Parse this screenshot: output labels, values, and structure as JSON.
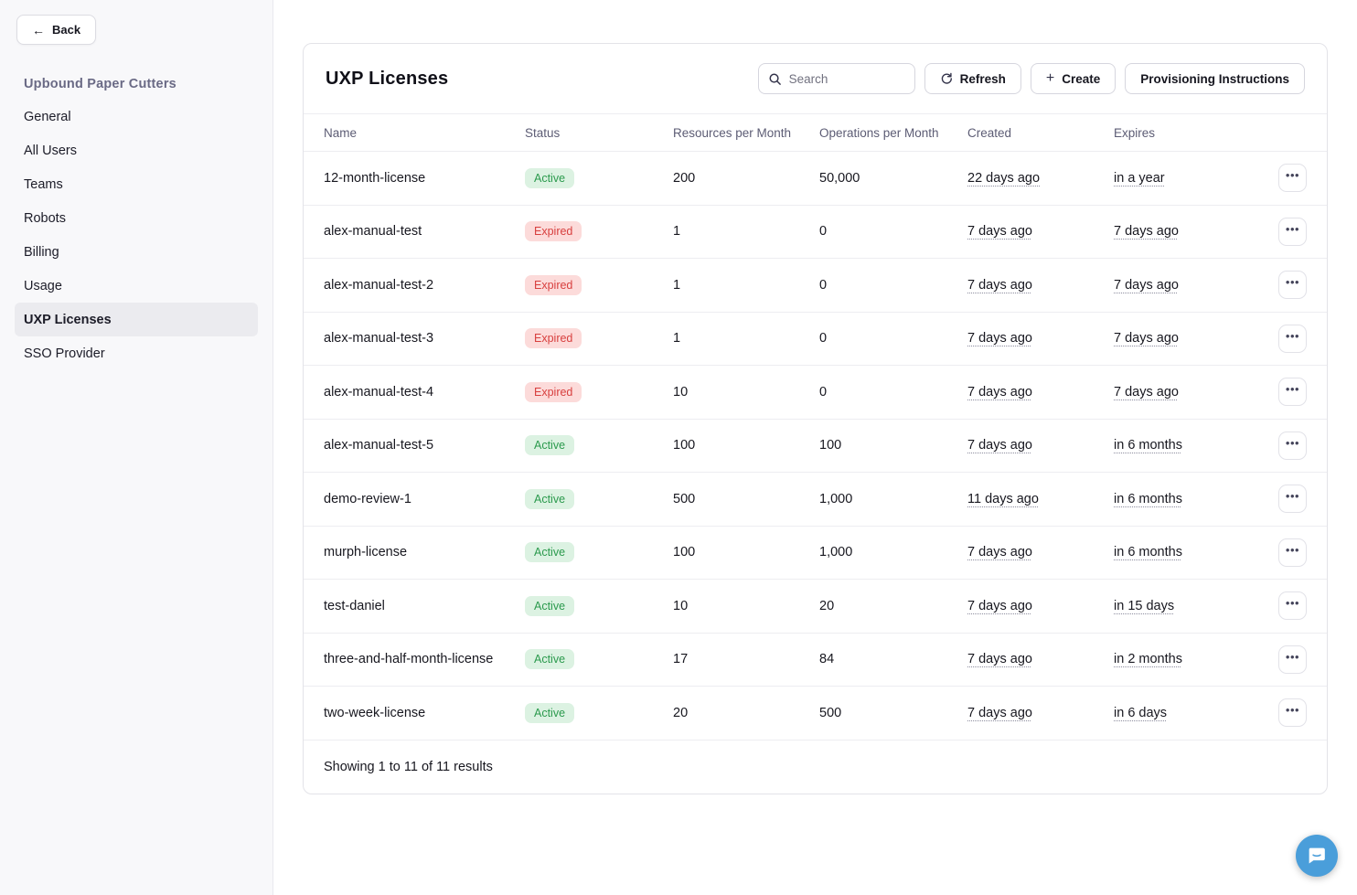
{
  "sidebar": {
    "back_label": "Back",
    "back_icon": "←",
    "org_title": "Upbound Paper Cutters",
    "items": [
      {
        "label": "General",
        "active": false
      },
      {
        "label": "All Users",
        "active": false
      },
      {
        "label": "Teams",
        "active": false
      },
      {
        "label": "Robots",
        "active": false
      },
      {
        "label": "Billing",
        "active": false
      },
      {
        "label": "Usage",
        "active": false
      },
      {
        "label": "UXP Licenses",
        "active": true
      },
      {
        "label": "SSO Provider",
        "active": false
      }
    ]
  },
  "header": {
    "title": "UXP Licenses",
    "search_placeholder": "Search",
    "refresh_label": "Refresh",
    "create_label": "Create",
    "create_icon": "+",
    "provisioning_label": "Provisioning Instructions"
  },
  "table": {
    "columns": [
      "Name",
      "Status",
      "Resources per Month",
      "Operations per Month",
      "Created",
      "Expires"
    ],
    "rows": [
      {
        "name": "12-month-license",
        "status": "Active",
        "resources": "200",
        "operations": "50,000",
        "created": "22 days ago",
        "expires": "in a year"
      },
      {
        "name": "alex-manual-test",
        "status": "Expired",
        "resources": "1",
        "operations": "0",
        "created": "7 days ago",
        "expires": "7 days ago"
      },
      {
        "name": "alex-manual-test-2",
        "status": "Expired",
        "resources": "1",
        "operations": "0",
        "created": "7 days ago",
        "expires": "7 days ago"
      },
      {
        "name": "alex-manual-test-3",
        "status": "Expired",
        "resources": "1",
        "operations": "0",
        "created": "7 days ago",
        "expires": "7 days ago"
      },
      {
        "name": "alex-manual-test-4",
        "status": "Expired",
        "resources": "10",
        "operations": "0",
        "created": "7 days ago",
        "expires": "7 days ago"
      },
      {
        "name": "alex-manual-test-5",
        "status": "Active",
        "resources": "100",
        "operations": "100",
        "created": "7 days ago",
        "expires": "in 6 months"
      },
      {
        "name": "demo-review-1",
        "status": "Active",
        "resources": "500",
        "operations": "1,000",
        "created": "11 days ago",
        "expires": "in 6 months"
      },
      {
        "name": "murph-license",
        "status": "Active",
        "resources": "100",
        "operations": "1,000",
        "created": "7 days ago",
        "expires": "in 6 months"
      },
      {
        "name": "test-daniel",
        "status": "Active",
        "resources": "10",
        "operations": "20",
        "created": "7 days ago",
        "expires": "in 15 days"
      },
      {
        "name": "three-and-half-month-license",
        "status": "Active",
        "resources": "17",
        "operations": "84",
        "created": "7 days ago",
        "expires": "in 2 months"
      },
      {
        "name": "two-week-license",
        "status": "Active",
        "resources": "20",
        "operations": "500",
        "created": "7 days ago",
        "expires": "in 6 days"
      }
    ],
    "footer": "Showing 1 to 11 of 11 results"
  },
  "icons": {
    "ellipsis": "•••"
  },
  "colors": {
    "status_active_bg": "#dcf2e2",
    "status_active_text": "#2b9a4d",
    "status_expired_bg": "#fcdbda",
    "status_expired_text": "#d8403f",
    "chat_launcher_bg": "#4a9eda",
    "sidebar_bg": "#f8f8fa",
    "active_nav_bg": "#ebebef"
  }
}
